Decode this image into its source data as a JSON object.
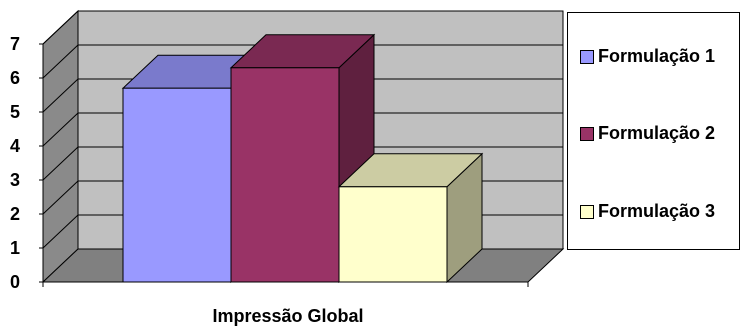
{
  "chart_data": {
    "type": "bar",
    "categories": [
      "Impressão Global"
    ],
    "series": [
      {
        "name": "Formulação 1",
        "values": [
          5.7
        ],
        "color": "#9999ff"
      },
      {
        "name": "Formulação 2",
        "values": [
          6.3
        ],
        "color": "#993366"
      },
      {
        "name": "Formulação 3",
        "values": [
          2.8
        ],
        "color": "#ffffcc"
      }
    ],
    "title": "",
    "xlabel": "",
    "ylabel": "",
    "ylim": [
      0,
      7
    ],
    "yticks": [
      "0",
      "1",
      "2",
      "3",
      "4",
      "5",
      "6",
      "7"
    ],
    "grid": true,
    "legend": "right",
    "style": "3d-clustered-column",
    "wall_color": "#c0c0c0",
    "floor_color": "#808080"
  }
}
